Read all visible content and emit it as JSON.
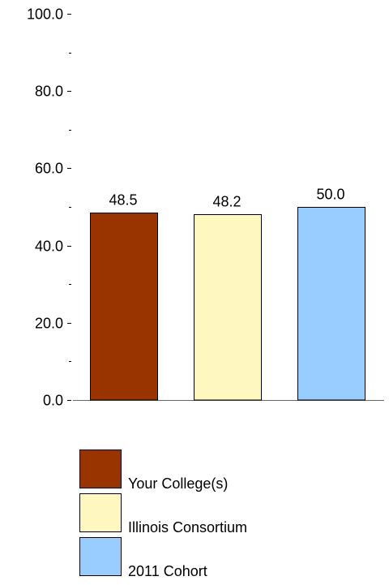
{
  "chart_data": {
    "type": "bar",
    "categories": [
      "Your College(s)",
      "Illinois Consortium",
      "2011 Cohort"
    ],
    "values": [
      48.5,
      48.2,
      50.0
    ],
    "value_labels": [
      "48.5",
      "48.2",
      "50.0"
    ],
    "colors": [
      "#993300",
      "#fff7c0",
      "#99ccff"
    ],
    "ylim": [
      0,
      100
    ],
    "major_ticks": [
      0,
      20,
      40,
      60,
      80,
      100
    ],
    "major_tick_labels": [
      "0.0",
      "20.0",
      "40.0",
      "60.0",
      "80.0",
      "100.0"
    ],
    "minor_ticks": [
      10,
      30,
      50,
      70,
      90
    ],
    "grid": false,
    "legend_position": "bottom",
    "title": "",
    "xlabel": "",
    "ylabel": ""
  },
  "legend": {
    "items": [
      {
        "label": "Your College(s)",
        "color": "#993300"
      },
      {
        "label": "Illinois Consortium",
        "color": "#fff7c0"
      },
      {
        "label": "2011 Cohort",
        "color": "#99ccff"
      }
    ]
  }
}
